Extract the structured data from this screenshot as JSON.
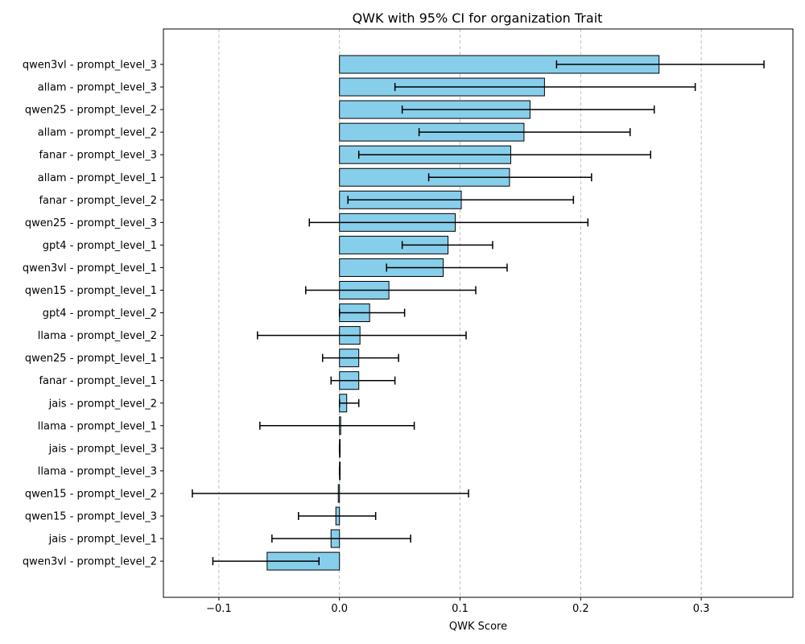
{
  "chart_data": {
    "type": "bar",
    "orientation": "horizontal",
    "title": "QWK with 95% CI for organization Trait",
    "xlabel": "QWK Score",
    "ylabel": "",
    "xlim": [
      -0.146,
      0.376
    ],
    "xticks": [
      -0.1,
      0.0,
      0.1,
      0.2,
      0.3
    ],
    "xtick_labels": [
      "−0.1",
      "0.0",
      "0.1",
      "0.2",
      "0.3"
    ],
    "grid": "x-dashed",
    "bar_color": "#87CEEB",
    "edge_color": "#000000",
    "categories": [
      "qwen3vl - prompt_level_3",
      "allam - prompt_level_3",
      "qwen25 - prompt_level_2",
      "allam - prompt_level_2",
      "fanar - prompt_level_3",
      "allam - prompt_level_1",
      "fanar - prompt_level_2",
      "qwen25 - prompt_level_3",
      "gpt4 - prompt_level_1",
      "qwen3vl - prompt_level_1",
      "qwen15 - prompt_level_1",
      "gpt4 - prompt_level_2",
      "llama - prompt_level_2",
      "qwen25 - prompt_level_1",
      "fanar - prompt_level_1",
      "jais - prompt_level_2",
      "llama - prompt_level_1",
      "jais - prompt_level_3",
      "llama - prompt_level_3",
      "qwen15 - prompt_level_2",
      "qwen15 - prompt_level_3",
      "jais - prompt_level_1",
      "qwen3vl - prompt_level_2"
    ],
    "values": [
      0.265,
      0.17,
      0.158,
      0.153,
      0.142,
      0.141,
      0.101,
      0.096,
      0.09,
      0.086,
      0.041,
      0.025,
      0.017,
      0.016,
      0.016,
      0.006,
      0.001,
      0.0,
      0.0,
      -0.001,
      -0.003,
      -0.007,
      -0.06
    ],
    "ci_low": [
      0.18,
      0.046,
      0.052,
      0.066,
      0.016,
      0.074,
      0.007,
      -0.025,
      0.052,
      0.039,
      -0.028,
      0.0,
      -0.068,
      -0.014,
      -0.007,
      0.0,
      -0.066,
      0.0,
      0.0,
      -0.122,
      -0.034,
      -0.056,
      -0.105
    ],
    "ci_high": [
      0.352,
      0.295,
      0.261,
      0.241,
      0.258,
      0.209,
      0.194,
      0.206,
      0.127,
      0.139,
      0.113,
      0.054,
      0.105,
      0.049,
      0.046,
      0.016,
      0.062,
      0.0,
      0.0,
      0.107,
      0.03,
      0.059,
      -0.017
    ]
  }
}
